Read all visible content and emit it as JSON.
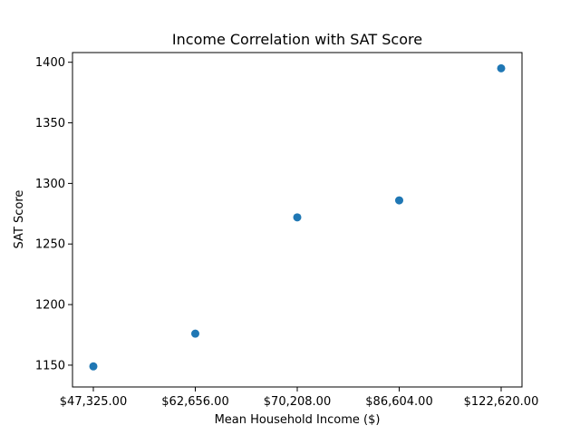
{
  "chart_data": {
    "type": "scatter",
    "title": "Income Correlation with SAT Score",
    "xlabel": "Mean Household Income ($)",
    "ylabel": "SAT Score",
    "x_categories": [
      "$47,325.00",
      "$62,656.00",
      "$70,208.00",
      "$86,604.00",
      "$122,620.00"
    ],
    "y": [
      1149,
      1176,
      1272,
      1286,
      1395
    ],
    "ylim": [
      1132,
      1408
    ],
    "yticks": [
      1150,
      1200,
      1250,
      1300,
      1350,
      1400
    ],
    "grid": false,
    "marker_color": "#1f77b4"
  }
}
